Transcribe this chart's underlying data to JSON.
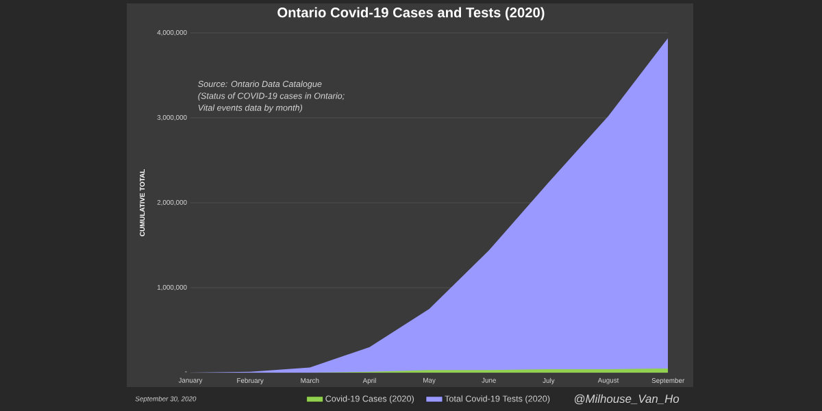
{
  "chart_data": {
    "type": "area",
    "title": "Ontario Covid-19 Cases and Tests (2020)",
    "ylabel": "CUMULATIVE TOTAL",
    "categories": [
      "January",
      "February",
      "March",
      "April",
      "May",
      "June",
      "July",
      "August",
      "September"
    ],
    "series": [
      {
        "name": "Covid-19 Cases (2020)",
        "color": "#92d050",
        "values": [
          0,
          0,
          0,
          10000,
          30000,
          30000,
          40000,
          40000,
          50000
        ]
      },
      {
        "name": "Total Covid-19 Tests (2020)",
        "color": "#9999ff",
        "values": [
          0,
          10000,
          60000,
          300000,
          750000,
          1440000,
          2240000,
          3020000,
          3940000
        ]
      }
    ],
    "ylim": [
      0,
      4000000
    ],
    "yticks": [
      {
        "value": 0,
        "label": "-"
      },
      {
        "value": 1000000,
        "label": "1,000,000"
      },
      {
        "value": 2000000,
        "label": "2,000,000"
      },
      {
        "value": 3000000,
        "label": "3,000,000"
      },
      {
        "value": 4000000,
        "label": "4,000,000"
      }
    ],
    "grid": "y",
    "legend": "bottom",
    "annotations": [
      "Source: Ontario Data Catalogue",
      "(Status of COVID-19 cases in Ontario;",
      "Vital events data by month)",
      "September 30, 2020",
      "@Milhouse_Van_Ho"
    ]
  }
}
